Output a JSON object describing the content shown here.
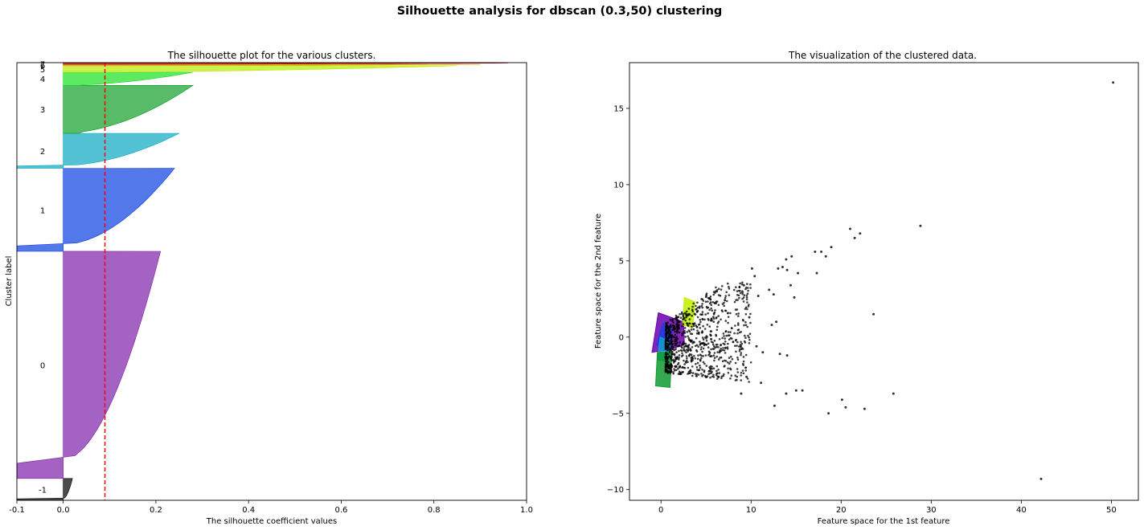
{
  "figure_title": "Silhouette analysis for dbscan (0.3,50) clustering",
  "chart_data": [
    {
      "type": "area",
      "title": "The silhouette plot for the various clusters.",
      "xlabel": "The silhouette coefficient values",
      "ylabel": "Cluster label",
      "xlim": [
        -0.1,
        1.0
      ],
      "xticks": [
        -0.1,
        0.0,
        0.2,
        0.4,
        0.6,
        0.8,
        1.0
      ],
      "xtick_labels": [
        "-0.1",
        "0.0",
        "0.2",
        "0.4",
        "0.6",
        "0.8",
        "1.0"
      ],
      "average_silhouette_score": 0.09,
      "clusters": [
        {
          "label": "-1",
          "color": "#000000",
          "y": [
            0,
            50
          ],
          "min_value": -0.1,
          "max_value": 0.02
        },
        {
          "label": "0",
          "color": "#7e1fa8",
          "y": [
            50,
            570
          ],
          "min_value": -0.1,
          "max_value": 0.21
        },
        {
          "label": "1",
          "color": "#0a3ee0",
          "y": [
            570,
            760
          ],
          "min_value": -0.1,
          "max_value": 0.24
        },
        {
          "label": "2",
          "color": "#0aa8c2",
          "y": [
            760,
            840
          ],
          "min_value": -0.1,
          "max_value": 0.25
        },
        {
          "label": "3",
          "color": "#0f9e28",
          "y": [
            840,
            950
          ],
          "min_value": 0.0,
          "max_value": 0.28
        },
        {
          "label": "4",
          "color": "#18e020",
          "y": [
            950,
            980
          ],
          "min_value": 0.0,
          "max_value": 0.28
        },
        {
          "label": "5",
          "color": "#b5ed00",
          "y": [
            980,
            995
          ],
          "min_value": 0.0,
          "max_value": 0.85
        },
        {
          "label": "6",
          "color": "#e0a000",
          "y": [
            995,
            998
          ],
          "min_value": 0.0,
          "max_value": 0.9
        },
        {
          "label": "7",
          "color": "#b00000",
          "y": [
            998,
            1001
          ],
          "min_value": 0.0,
          "max_value": 0.96
        }
      ],
      "ylim": [
        0,
        1002
      ]
    },
    {
      "type": "scatter",
      "title": "The visualization of the clustered data.",
      "xlabel": "Feature space for the 1st feature",
      "ylabel": "Feature space for the 2nd feature",
      "xlim": [
        -3.5,
        53
      ],
      "ylim": [
        -10.7,
        18
      ],
      "xticks": [
        0,
        10,
        20,
        30,
        40,
        50
      ],
      "yticks": [
        -10,
        -5,
        0,
        5,
        10,
        15
      ],
      "noise_color": "#000000",
      "noise_points": [
        [
          50.2,
          16.7
        ],
        [
          42.2,
          -9.3
        ],
        [
          28.8,
          7.3
        ],
        [
          23.6,
          1.5
        ],
        [
          25.8,
          -3.7
        ],
        [
          22.6,
          -4.7
        ],
        [
          21.0,
          7.1
        ],
        [
          21.5,
          6.5
        ],
        [
          22.1,
          6.8
        ],
        [
          20.1,
          -4.1
        ],
        [
          20.5,
          -4.6
        ],
        [
          18.6,
          -5.0
        ],
        [
          18.9,
          5.9
        ],
        [
          18.3,
          5.3
        ],
        [
          17.8,
          5.6
        ],
        [
          17.3,
          4.2
        ],
        [
          17.1,
          5.6
        ],
        [
          15.2,
          4.2
        ],
        [
          15.0,
          -3.5
        ],
        [
          15.7,
          -3.5
        ],
        [
          14.4,
          3.4
        ],
        [
          14.5,
          5.3
        ],
        [
          13.9,
          5.1
        ],
        [
          13.5,
          4.6
        ],
        [
          14.8,
          2.6
        ],
        [
          13.0,
          4.5
        ],
        [
          14.0,
          4.4
        ],
        [
          13.9,
          -3.7
        ],
        [
          12.6,
          -4.5
        ],
        [
          12.3,
          0.8
        ],
        [
          12.8,
          1.0
        ],
        [
          12.0,
          3.1
        ],
        [
          13.2,
          -1.1
        ],
        [
          14.0,
          -1.2
        ],
        [
          11.1,
          -3.0
        ],
        [
          11.3,
          -1.0
        ],
        [
          10.1,
          4.5
        ],
        [
          10.4,
          4.0
        ],
        [
          10.8,
          2.7
        ],
        [
          9.8,
          1.3
        ],
        [
          9.5,
          -2.6
        ],
        [
          10.6,
          -0.6
        ],
        [
          9.2,
          3.4
        ],
        [
          8.9,
          -3.7
        ],
        [
          12.5,
          2.8
        ]
      ],
      "clusters": [
        {
          "label": "0",
          "color": "#6a00b0",
          "region": [
            [
              -1.0,
              -1.0
            ],
            [
              -0.3,
              1.6
            ],
            [
              2.5,
              1.0
            ],
            [
              2.6,
              -0.5
            ],
            [
              1.0,
              -0.8
            ]
          ]
        },
        {
          "label": "1",
          "color": "#1e3ce0",
          "region": [
            [
              -0.5,
              -0.5
            ],
            [
              0.2,
              0.9
            ],
            [
              1.2,
              0.5
            ],
            [
              1.0,
              -1.0
            ]
          ]
        },
        {
          "label": "2",
          "color": "#10a0d0",
          "region": [
            [
              -0.4,
              -1.5
            ],
            [
              -0.1,
              0.0
            ],
            [
              1.0,
              -0.3
            ],
            [
              0.9,
              -1.6
            ]
          ]
        },
        {
          "label": "3",
          "color": "#109a30",
          "region": [
            [
              -0.6,
              -3.2
            ],
            [
              -0.4,
              -1.0
            ],
            [
              1.2,
              -1.0
            ],
            [
              1.0,
              -3.3
            ]
          ]
        },
        {
          "label": "5",
          "color": "#c0f000",
          "region": [
            [
              2.4,
              0.8
            ],
            [
              2.6,
              2.6
            ],
            [
              3.8,
              2.3
            ],
            [
              3.5,
              0.6
            ]
          ]
        }
      ]
    }
  ]
}
